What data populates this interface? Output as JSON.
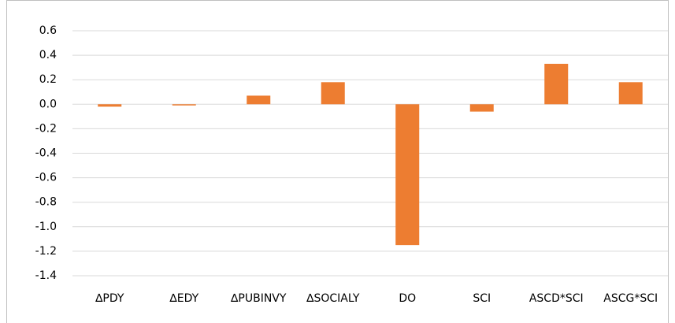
{
  "chart_data": {
    "type": "bar",
    "categories": [
      "∆PDY",
      "∆EDY",
      "∆PUBINVY",
      "∆SOCIALY",
      "DO",
      "SCI",
      "ASCD*SCI",
      "ASCG*SCI"
    ],
    "values": [
      -0.02,
      -0.01,
      0.07,
      0.18,
      -1.15,
      -0.06,
      0.33,
      0.18
    ],
    "color": "#ed7d31",
    "ylim": [
      -1.4,
      0.6
    ],
    "yticks": [
      {
        "value": -1.4,
        "label": "-1.4"
      },
      {
        "value": -1.2,
        "label": "-1.2"
      },
      {
        "value": -1,
        "label": "-1.0"
      },
      -0.8,
      -0.6,
      -0.4,
      -0.2,
      {
        "value": 0,
        "label": "0.0"
      },
      0.2,
      0.4,
      0.6
    ],
    "grid": true
  }
}
